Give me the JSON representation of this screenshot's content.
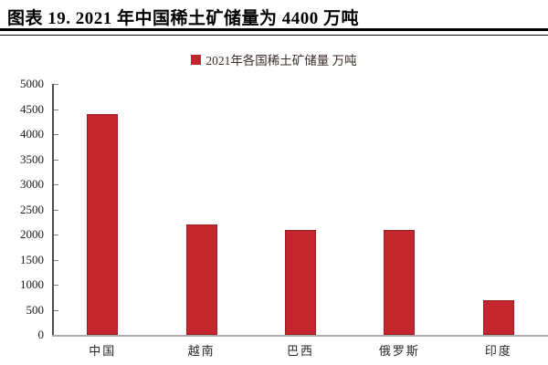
{
  "header": {
    "title": "图表 19. 2021 年中国稀土矿储量为 4400 万吨"
  },
  "legend": {
    "label": "2021年各国稀土矿储量 万吨",
    "marker_color": "#C4262D"
  },
  "chart_data": {
    "type": "bar",
    "title": "图表 19. 2021 年中国稀土矿储量为 4400 万吨",
    "series_name": "2021年各国稀土矿储量 万吨",
    "categories": [
      "中国",
      "越南",
      "巴西",
      "俄罗斯",
      "印度"
    ],
    "values": [
      4400,
      2200,
      2100,
      2100,
      690
    ],
    "unit": "万吨",
    "xlabel": "",
    "ylabel": "",
    "ylim": [
      0,
      5000
    ],
    "ytick_step": 500,
    "ytick_labels": [
      "0",
      "500",
      "1000",
      "1500",
      "2000",
      "2500",
      "3000",
      "3500",
      "4000",
      "4500",
      "5000"
    ],
    "grid": false,
    "legend_position": "top-center",
    "bar_color": "#C4262D",
    "bar_border_color": "#9B2026"
  },
  "colors": {
    "title_text": "#000000",
    "rule": "#000000",
    "y_axis_line": "#4D4D4D",
    "x_axis_line": "#ABABAB",
    "tick": "#7F7F7F",
    "axis_label_text": "#1A1A1A",
    "category_label_text": "#262626",
    "legend_text": "#3A2D2A",
    "background": "#FFFFFF"
  }
}
